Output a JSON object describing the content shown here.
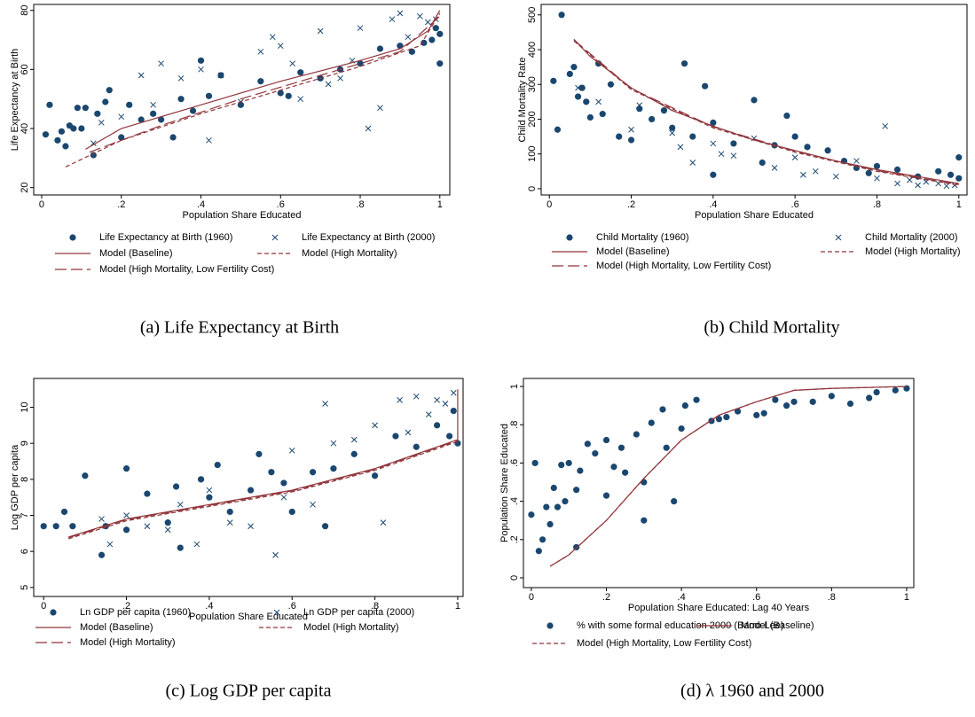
{
  "chart_data": [
    {
      "type": "scatter",
      "caption": "(a) Life Expectancy at Birth",
      "xlabel": "Population Share Educated",
      "ylabel": "Life Expectancy at Birth",
      "xlim": [
        -0.02,
        1.025
      ],
      "ylim": [
        17.5,
        82
      ],
      "xticks": [
        0,
        {
          "value": 0.2,
          "label": ".2"
        },
        {
          "value": 0.4,
          "label": ".4"
        },
        {
          "value": 0.6,
          "label": ".6"
        },
        {
          "value": 0.8,
          "label": ".8"
        },
        1
      ],
      "yticks": [
        20,
        40,
        60,
        80
      ],
      "series": [
        {
          "name": "Life Expectancy at Birth (1960)",
          "color": "#1a476f",
          "marker": "circle",
          "x": [
            0.01,
            0.02,
            0.04,
            0.05,
            0.06,
            0.07,
            0.08,
            0.09,
            0.1,
            0.11,
            0.13,
            0.14,
            0.16,
            0.17,
            0.2,
            0.22,
            0.25,
            0.28,
            0.3,
            0.33,
            0.35,
            0.38,
            0.4,
            0.42,
            0.45,
            0.5,
            0.55,
            0.6,
            0.62,
            0.65,
            0.7,
            0.75,
            0.8,
            0.85,
            0.9,
            0.93,
            0.96,
            0.98,
            0.99,
            1.0,
            1.0
          ],
          "values": [
            38,
            48,
            36,
            39,
            34,
            41,
            40,
            47,
            40,
            47,
            31,
            45,
            49,
            53,
            37,
            48,
            43,
            45,
            43,
            37,
            50,
            46,
            63,
            51,
            58,
            48,
            56,
            52,
            51,
            59,
            57,
            60,
            62,
            67,
            68,
            66,
            69,
            70,
            74,
            72,
            62
          ]
        },
        {
          "name": "Life Expectancy at Birth (2000)",
          "color": "#1a476f",
          "marker": "x",
          "x": [
            0.13,
            0.15,
            0.2,
            0.25,
            0.28,
            0.3,
            0.35,
            0.4,
            0.42,
            0.45,
            0.5,
            0.55,
            0.58,
            0.6,
            0.63,
            0.65,
            0.7,
            0.72,
            0.75,
            0.78,
            0.8,
            0.82,
            0.85,
            0.88,
            0.9,
            0.92,
            0.95,
            0.97,
            0.99
          ],
          "values": [
            35,
            42,
            44,
            58,
            48,
            62,
            57,
            60,
            36,
            58,
            49,
            66,
            71,
            68,
            62,
            50,
            73,
            55,
            57,
            63,
            74,
            40,
            47,
            77,
            79,
            71,
            78,
            76,
            77
          ]
        },
        {
          "name": "Model (Baseline)",
          "color": "#90353b",
          "line": "solid",
          "x": [
            0.11,
            0.2,
            0.4,
            0.6,
            0.8,
            0.9,
            0.97,
            1.0
          ],
          "values": [
            33,
            40,
            48,
            56,
            63,
            67,
            73,
            80
          ]
        },
        {
          "name": "Model (High Mortality)",
          "color": "#90353b",
          "line": "dash",
          "x": [
            0.06,
            0.2,
            0.4,
            0.6,
            0.8,
            0.95,
            1.0
          ],
          "values": [
            27,
            36,
            45,
            53,
            61,
            68,
            79
          ]
        },
        {
          "name": "Model (High Mortality, Low Fertility Cost)",
          "color": "#90353b",
          "line": "longdash",
          "x": [
            0.12,
            0.3,
            0.5,
            0.7,
            0.9,
            1.0
          ],
          "values": [
            32,
            41,
            50,
            58,
            66,
            78
          ]
        }
      ]
    },
    {
      "type": "scatter",
      "caption": "(b) Child Mortality",
      "xlabel": "Population Share Educated",
      "ylabel": "Child Mortality Rate",
      "xlim": [
        -0.02,
        1.02
      ],
      "ylim": [
        -18,
        530
      ],
      "xticks": [
        0,
        {
          "value": 0.2,
          "label": ".2"
        },
        {
          "value": 0.4,
          "label": ".4"
        },
        {
          "value": 0.6,
          "label": ".6"
        },
        {
          "value": 0.8,
          "label": ".8"
        },
        1
      ],
      "yticks": [
        0,
        100,
        200,
        300,
        400,
        500
      ],
      "series": [
        {
          "name": "Child Mortality (1960)",
          "color": "#1a476f",
          "marker": "circle",
          "x": [
            0.01,
            0.02,
            0.03,
            0.05,
            0.06,
            0.07,
            0.08,
            0.09,
            0.1,
            0.12,
            0.13,
            0.15,
            0.17,
            0.2,
            0.22,
            0.25,
            0.28,
            0.3,
            0.33,
            0.35,
            0.38,
            0.4,
            0.4,
            0.45,
            0.5,
            0.52,
            0.55,
            0.58,
            0.6,
            0.63,
            0.68,
            0.72,
            0.75,
            0.78,
            0.8,
            0.85,
            0.9,
            0.95,
            0.98,
            1.0,
            1.0
          ],
          "values": [
            310,
            170,
            500,
            330,
            350,
            265,
            290,
            250,
            205,
            360,
            215,
            300,
            150,
            140,
            230,
            200,
            225,
            175,
            360,
            150,
            295,
            190,
            40,
            130,
            255,
            75,
            125,
            210,
            150,
            120,
            110,
            80,
            60,
            45,
            65,
            55,
            35,
            50,
            40,
            30,
            90
          ]
        },
        {
          "name": "Child Mortality (2000)",
          "color": "#1a476f",
          "marker": "x",
          "x": [
            0.07,
            0.12,
            0.2,
            0.22,
            0.3,
            0.32,
            0.35,
            0.4,
            0.42,
            0.45,
            0.5,
            0.55,
            0.6,
            0.62,
            0.65,
            0.7,
            0.75,
            0.8,
            0.82,
            0.85,
            0.88,
            0.9,
            0.92,
            0.95,
            0.97,
            0.99
          ],
          "values": [
            290,
            250,
            170,
            240,
            160,
            120,
            75,
            130,
            100,
            95,
            145,
            60,
            90,
            40,
            50,
            35,
            80,
            30,
            180,
            15,
            25,
            10,
            20,
            15,
            8,
            10
          ]
        },
        {
          "name": "Model (Baseline)",
          "color": "#90353b",
          "line": "solid",
          "x": [
            0.06,
            0.1,
            0.2,
            0.3,
            0.4,
            0.5,
            0.6,
            0.7,
            0.8,
            0.9,
            1.0
          ],
          "values": [
            430,
            380,
            290,
            225,
            180,
            140,
            110,
            80,
            55,
            35,
            15
          ]
        },
        {
          "name": "Model (High Mortality)",
          "color": "#90353b",
          "line": "dash",
          "x": [
            0.06,
            0.2,
            0.4,
            0.6,
            0.8,
            1.0
          ],
          "values": [
            425,
            285,
            175,
            105,
            50,
            10
          ]
        },
        {
          "name": "Model (High Mortality, Low Fertility Cost)",
          "color": "#90353b",
          "line": "longdash",
          "x": [
            0.06,
            0.2,
            0.4,
            0.6,
            0.8,
            1.0
          ],
          "values": [
            428,
            288,
            178,
            108,
            52,
            12
          ]
        }
      ]
    },
    {
      "type": "scatter",
      "caption": "(c) Log GDP per capita",
      "xlabel": "Population Share Educated",
      "ylabel": "Log GDP per capita",
      "xlim": [
        -0.024,
        1.013
      ],
      "ylim": [
        4.75,
        10.8
      ],
      "xticks": [
        0,
        {
          "value": 0.2,
          "label": ".2"
        },
        {
          "value": 0.4,
          "label": ".4"
        },
        {
          "value": 0.6,
          "label": ".6"
        },
        {
          "value": 0.8,
          "label": ".8"
        },
        1
      ],
      "yticks": [
        5,
        6,
        7,
        8,
        9,
        10
      ],
      "series": [
        {
          "name": "Ln GDP per capita (1960)",
          "color": "#1a476f",
          "marker": "circle",
          "x": [
            0.0,
            0.03,
            0.05,
            0.07,
            0.1,
            0.14,
            0.15,
            0.2,
            0.2,
            0.25,
            0.3,
            0.32,
            0.33,
            0.38,
            0.4,
            0.42,
            0.45,
            0.5,
            0.52,
            0.55,
            0.58,
            0.6,
            0.65,
            0.68,
            0.7,
            0.75,
            0.8,
            0.85,
            0.9,
            0.95,
            0.98,
            0.99,
            1.0
          ],
          "values": [
            6.7,
            6.7,
            7.1,
            6.7,
            8.1,
            5.9,
            6.7,
            8.3,
            6.6,
            7.6,
            6.8,
            7.8,
            6.1,
            8.0,
            7.5,
            8.4,
            7.1,
            7.7,
            8.7,
            8.2,
            7.9,
            7.1,
            8.2,
            6.7,
            8.3,
            8.7,
            8.1,
            9.2,
            8.9,
            9.5,
            9.2,
            9.9,
            9.0
          ]
        },
        {
          "name": "Ln GDP per capita (2000)",
          "color": "#1a476f",
          "marker": "x",
          "x": [
            0.14,
            0.16,
            0.2,
            0.25,
            0.3,
            0.33,
            0.37,
            0.4,
            0.45,
            0.5,
            0.56,
            0.58,
            0.6,
            0.65,
            0.68,
            0.7,
            0.75,
            0.8,
            0.82,
            0.86,
            0.88,
            0.9,
            0.93,
            0.95,
            0.97,
            0.99
          ],
          "values": [
            6.9,
            6.2,
            7.0,
            6.7,
            6.6,
            7.3,
            6.2,
            7.7,
            6.8,
            6.7,
            5.9,
            7.5,
            8.8,
            7.3,
            10.1,
            9.0,
            9.1,
            9.5,
            6.8,
            10.2,
            9.3,
            10.3,
            9.8,
            10.2,
            10.1,
            10.4
          ]
        },
        {
          "name": "Model (Baseline)",
          "color": "#90353b",
          "line": "solid",
          "x": [
            0.06,
            0.2,
            0.4,
            0.6,
            0.8,
            0.95,
            1.0,
            1.0
          ],
          "values": [
            6.4,
            6.9,
            7.3,
            7.7,
            8.3,
            8.9,
            9.1,
            10.5
          ]
        },
        {
          "name": "Model (High Mortality)",
          "color": "#90353b",
          "line": "dash",
          "x": [
            0.06,
            0.2,
            0.4,
            0.6,
            0.8,
            0.95,
            1.0
          ],
          "values": [
            6.35,
            6.85,
            7.25,
            7.65,
            8.25,
            8.85,
            9.05
          ]
        },
        {
          "name": "Model (High Mortality)",
          "color": "#90353b",
          "line": "longdash",
          "x": [
            0.06,
            0.2,
            0.4,
            0.6,
            0.8,
            0.95,
            1.0
          ],
          "values": [
            6.38,
            6.88,
            7.28,
            7.68,
            8.28,
            8.88,
            9.08
          ]
        }
      ]
    },
    {
      "type": "scatter",
      "caption": "(d) λ 1960 and 2000",
      "xlabel": "Population Share Educated: Lag 40 Years",
      "ylabel": "Population Share Educated",
      "xlim": [
        -0.021,
        1.019
      ],
      "ylim": [
        -0.051,
        1.042
      ],
      "xticks": [
        0,
        {
          "value": 0.2,
          "label": ".2"
        },
        {
          "value": 0.4,
          "label": ".4"
        },
        {
          "value": 0.6,
          "label": ".6"
        },
        {
          "value": 0.8,
          "label": ".8"
        },
        1
      ],
      "yticks": [
        0,
        {
          "value": 0.2,
          "label": ".2"
        },
        {
          "value": 0.4,
          "label": ".4"
        },
        {
          "value": 0.6,
          "label": ".6"
        },
        {
          "value": 0.8,
          "label": ".8"
        },
        1
      ],
      "series": [
        {
          "name": "% with some formal education 2000 (Barro-Lee)",
          "color": "#1a476f",
          "marker": "circle",
          "x": [
            0.0,
            0.01,
            0.02,
            0.03,
            0.04,
            0.05,
            0.06,
            0.07,
            0.08,
            0.09,
            0.1,
            0.12,
            0.12,
            0.13,
            0.15,
            0.17,
            0.2,
            0.2,
            0.22,
            0.24,
            0.25,
            0.28,
            0.3,
            0.3,
            0.32,
            0.35,
            0.36,
            0.38,
            0.4,
            0.41,
            0.44,
            0.48,
            0.5,
            0.52,
            0.55,
            0.6,
            0.62,
            0.65,
            0.68,
            0.7,
            0.75,
            0.8,
            0.85,
            0.9,
            0.92,
            0.97,
            1.0
          ],
          "values": [
            0.33,
            0.6,
            0.14,
            0.2,
            0.37,
            0.28,
            0.47,
            0.37,
            0.59,
            0.4,
            0.6,
            0.46,
            0.16,
            0.56,
            0.7,
            0.65,
            0.72,
            0.43,
            0.58,
            0.68,
            0.55,
            0.75,
            0.3,
            0.5,
            0.81,
            0.88,
            0.68,
            0.4,
            0.78,
            0.9,
            0.93,
            0.82,
            0.83,
            0.84,
            0.87,
            0.85,
            0.86,
            0.93,
            0.9,
            0.92,
            0.92,
            0.95,
            0.91,
            0.94,
            0.97,
            0.98,
            0.99
          ]
        },
        {
          "name": "Model (Baseline)",
          "color": "#90353b",
          "line": "solid",
          "x": [
            0.05,
            0.1,
            0.2,
            0.3,
            0.4,
            0.5,
            0.6,
            0.7,
            0.8,
            1.0
          ],
          "values": [
            0.06,
            0.12,
            0.3,
            0.52,
            0.72,
            0.85,
            0.92,
            0.98,
            0.99,
            1.0
          ]
        },
        {
          "name": "Model (High Mortality, Low Fertility Cost)",
          "color": "#90353b",
          "line": "dash",
          "x": [
            0.05,
            0.1,
            0.2,
            0.3,
            0.4,
            0.5,
            0.6,
            0.7,
            0.8,
            1.0
          ],
          "values": [
            0.06,
            0.12,
            0.3,
            0.52,
            0.72,
            0.85,
            0.92,
            0.98,
            0.99,
            1.0
          ]
        }
      ]
    }
  ]
}
